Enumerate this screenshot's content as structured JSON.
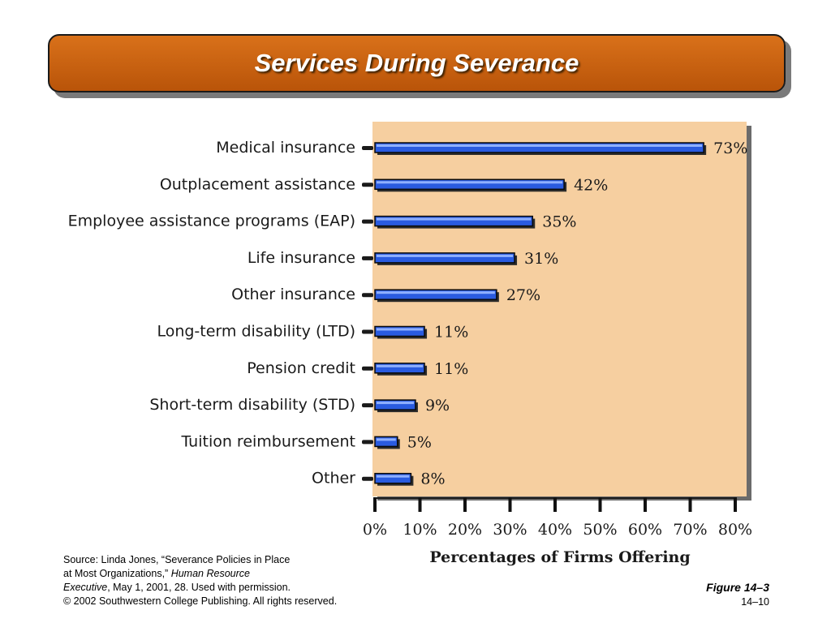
{
  "slide": {
    "title": "Services During Severance",
    "source_line1": "Source: Linda Jones, “Severance Policies in Place",
    "source_line2_plain": "at Most Organizations,” ",
    "source_line2_italic": "Human Resource",
    "source_line3_italic": "Executive",
    "source_line3_plain": ", May 1, 2001, 28. Used with permission.",
    "copyright": "© 2002 Southwestern College Publishing. All rights reserved.",
    "figure_label": "Figure 14–3",
    "page_number": "14–10"
  },
  "colors": {
    "title_bar": "#c8600e",
    "plot_background": "#f6cfa0",
    "bar": "#2a5be0",
    "bar_outline": "#0a0a0a"
  },
  "chart_data": {
    "type": "bar",
    "orientation": "horizontal",
    "categories": [
      "Medical insurance",
      "Outplacement assistance",
      "Employee assistance programs (EAP)",
      "Life insurance",
      "Other insurance",
      "Long-term disability (LTD)",
      "Pension credit",
      "Short-term disability (STD)",
      "Tuition reimbursement",
      "Other"
    ],
    "values": [
      73,
      42,
      35,
      31,
      27,
      11,
      11,
      9,
      5,
      8
    ],
    "value_labels": [
      "73%",
      "42%",
      "35%",
      "31%",
      "27%",
      "11%",
      "11%",
      "9%",
      "5%",
      "8%"
    ],
    "xlabel": "Percentages of Firms Offering",
    "xlim": [
      0,
      80
    ],
    "xticks": [
      0,
      10,
      20,
      30,
      40,
      50,
      60,
      70,
      80
    ],
    "xtick_labels": [
      "0%",
      "10%",
      "20%",
      "30%",
      "40%",
      "50%",
      "60%",
      "70%",
      "80%"
    ],
    "grid": false,
    "legend": "none"
  }
}
